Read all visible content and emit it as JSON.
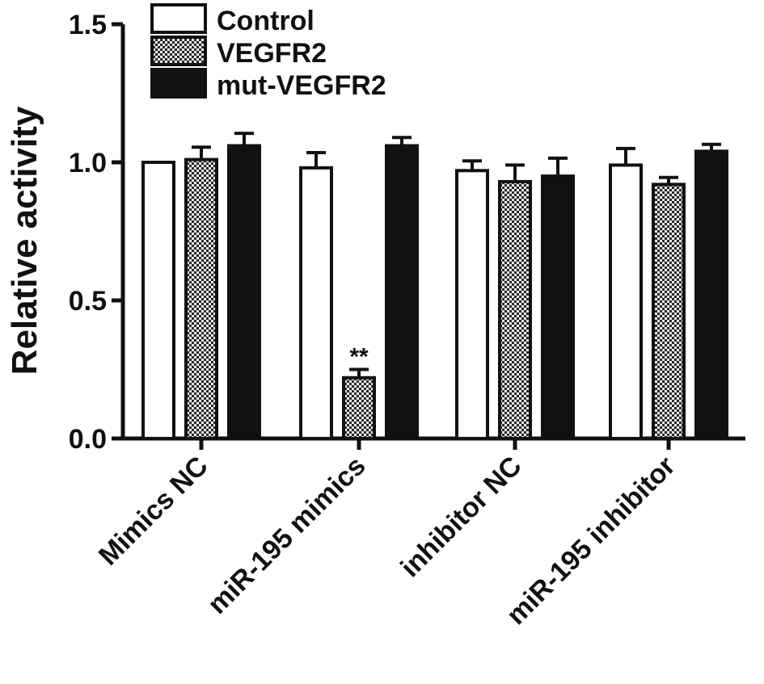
{
  "chart_data": {
    "type": "bar",
    "title": "",
    "xlabel": "",
    "ylabel": "Relative activity",
    "ylim": [
      0,
      1.5
    ],
    "yticks": [
      0.0,
      0.5,
      1.0,
      1.5
    ],
    "ytick_labels": [
      "0.0",
      "0.5",
      "1.0",
      "1.5"
    ],
    "categories": [
      "Mimics NC",
      "miR-195 mimics",
      "inhibitor NC",
      "miR-195 inhibitor"
    ],
    "series": [
      {
        "name": "Control",
        "fill": "white",
        "values": [
          1.0,
          0.98,
          0.97,
          0.99
        ],
        "errors": [
          0.0,
          0.055,
          0.035,
          0.06
        ]
      },
      {
        "name": "VEGFR2",
        "fill": "checker",
        "values": [
          1.01,
          0.22,
          0.93,
          0.92
        ],
        "errors": [
          0.045,
          0.03,
          0.06,
          0.025
        ]
      },
      {
        "name": "mut-VEGFR2",
        "fill": "black",
        "values": [
          1.06,
          1.06,
          0.95,
          1.04
        ],
        "errors": [
          0.045,
          0.03,
          0.065,
          0.025
        ]
      }
    ],
    "annotations": [
      {
        "category_index": 1,
        "series_index": 1,
        "text": "**"
      }
    ],
    "legend": {
      "placement": "top-left"
    },
    "grid": false,
    "colors": {
      "bar_edge": "#111111",
      "black_fill": "#111111",
      "checker_dark": "#2a2a2a",
      "checker_light": "#e8e8e8"
    }
  }
}
